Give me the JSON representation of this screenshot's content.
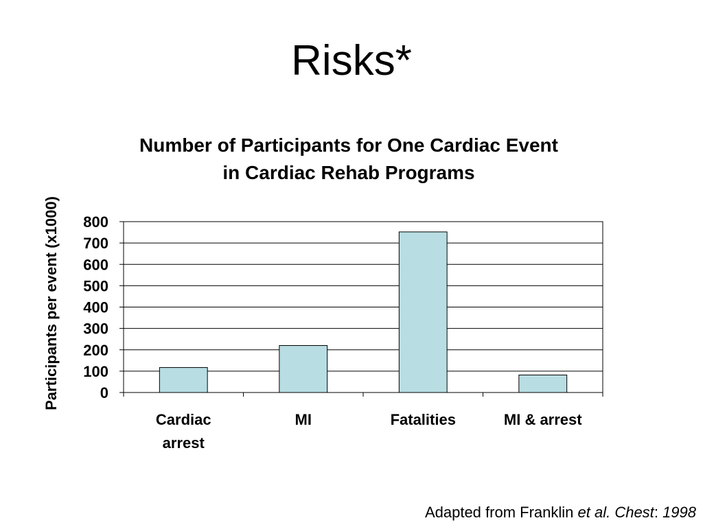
{
  "slide": {
    "title": "Risks*"
  },
  "chart_data": {
    "type": "bar",
    "title_lines": [
      "Number of Participants for One Cardiac Event",
      "in Cardiac Rehab Programs"
    ],
    "xlabel": "",
    "ylabel": "Participants per event (x1000)",
    "categories": [
      [
        "Cardiac",
        "arrest"
      ],
      [
        "MI"
      ],
      [
        "Fatalities"
      ],
      [
        "MI & arrest"
      ]
    ],
    "values": [
      117,
      220,
      752,
      82
    ],
    "ylim": [
      0,
      800
    ],
    "yticks": [
      "0",
      "100",
      "200",
      "300",
      "400",
      "500",
      "600",
      "700",
      "800"
    ],
    "grid": true,
    "legend": "none",
    "bar_color": "#b8dde2"
  },
  "footer": {
    "prefix": "Adapted from Franklin ",
    "etal": "et al.",
    "space": " ",
    "journal": "Chest",
    "colon": ": ",
    "year": "1998"
  }
}
